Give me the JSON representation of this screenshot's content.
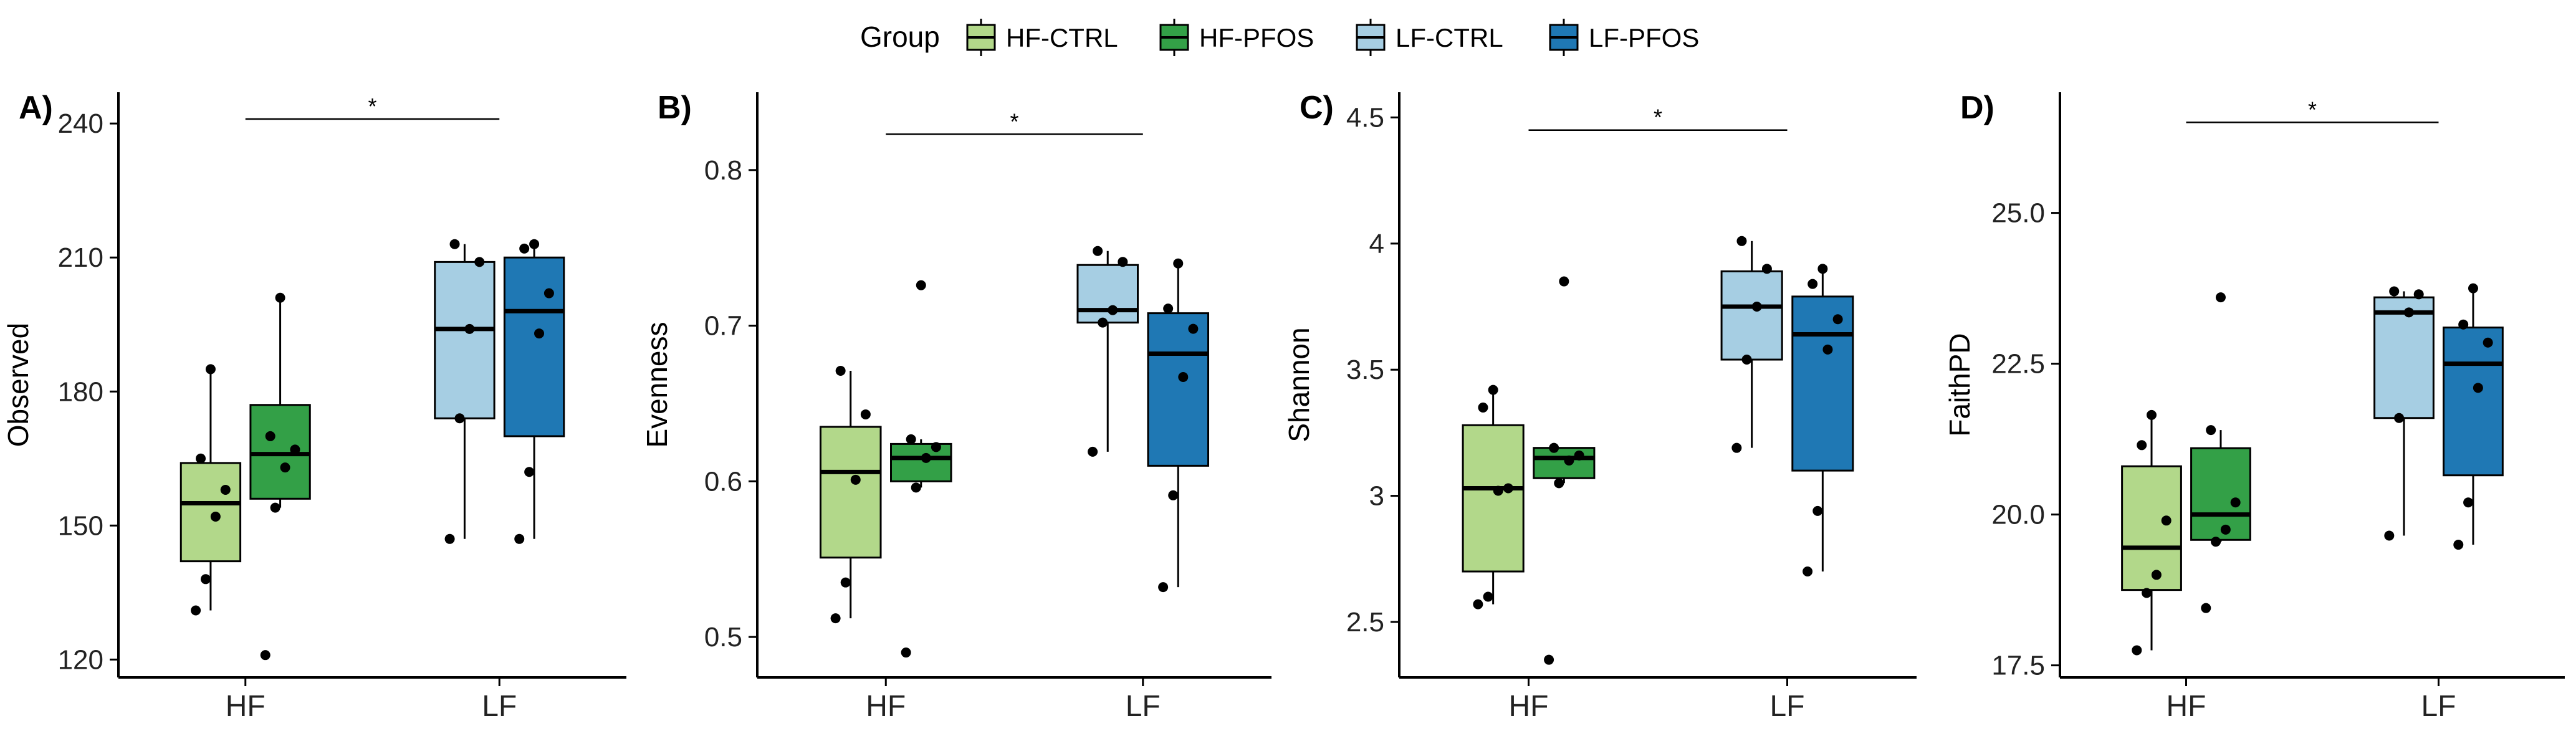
{
  "legend": {
    "title": "Group",
    "items": [
      {
        "label": "HF-CTRL",
        "color": "#b2d88a"
      },
      {
        "label": "HF-PFOS",
        "color": "#33a047"
      },
      {
        "label": "LF-CTRL",
        "color": "#a6cee3"
      },
      {
        "label": "LF-PFOS",
        "color": "#1f78b4"
      }
    ]
  },
  "chart_data": [
    {
      "type": "boxplot",
      "panel_label": "A)",
      "ylabel": "Observed",
      "categories": [
        "HF",
        "LF"
      ],
      "yticks": [
        120,
        150,
        180,
        210,
        240
      ],
      "ylim": [
        116,
        247
      ],
      "significance": {
        "from": "HF",
        "to": "LF",
        "y": 241,
        "label": "*"
      },
      "groups": [
        {
          "name": "HF-CTRL",
          "category": "HF",
          "whisker_low": 131,
          "q1": 142,
          "median": 155,
          "q3": 164,
          "whisker_high": 185,
          "points": [
            131,
            138,
            152,
            158,
            165,
            185
          ]
        },
        {
          "name": "HF-PFOS",
          "category": "HF",
          "whisker_low": 154,
          "q1": 156,
          "median": 166,
          "q3": 177,
          "whisker_high": 201,
          "points": [
            121,
            154,
            163,
            167,
            170,
            201
          ]
        },
        {
          "name": "LF-CTRL",
          "category": "LF",
          "whisker_low": 147,
          "q1": 174,
          "median": 194,
          "q3": 209,
          "whisker_high": 213,
          "points": [
            147,
            174,
            194,
            209,
            213
          ]
        },
        {
          "name": "LF-PFOS",
          "category": "LF",
          "whisker_low": 147,
          "q1": 170,
          "median": 198,
          "q3": 210,
          "whisker_high": 213,
          "points": [
            147,
            162,
            193,
            202,
            212,
            213
          ]
        }
      ]
    },
    {
      "type": "boxplot",
      "panel_label": "B)",
      "ylabel": "Evenness",
      "categories": [
        "HF",
        "LF"
      ],
      "yticks": [
        0.5,
        0.6,
        0.7,
        0.8
      ],
      "ylim": [
        0.474,
        0.85
      ],
      "significance": {
        "from": "HF",
        "to": "LF",
        "y": 0.823,
        "label": "*"
      },
      "groups": [
        {
          "name": "HF-CTRL",
          "category": "HF",
          "whisker_low": 0.512,
          "q1": 0.551,
          "median": 0.606,
          "q3": 0.635,
          "whisker_high": 0.671,
          "points": [
            0.512,
            0.535,
            0.601,
            0.643,
            0.671
          ]
        },
        {
          "name": "HF-PFOS",
          "category": "HF",
          "whisker_low": 0.596,
          "q1": 0.6,
          "median": 0.615,
          "q3": 0.624,
          "whisker_high": 0.627,
          "points": [
            0.49,
            0.596,
            0.615,
            0.622,
            0.627,
            0.726
          ]
        },
        {
          "name": "LF-CTRL",
          "category": "LF",
          "whisker_low": 0.619,
          "q1": 0.702,
          "median": 0.71,
          "q3": 0.739,
          "whisker_high": 0.748,
          "points": [
            0.619,
            0.702,
            0.71,
            0.741,
            0.748
          ]
        },
        {
          "name": "LF-PFOS",
          "category": "LF",
          "whisker_low": 0.532,
          "q1": 0.61,
          "median": 0.682,
          "q3": 0.708,
          "whisker_high": 0.74,
          "points": [
            0.532,
            0.591,
            0.667,
            0.698,
            0.711,
            0.74
          ]
        }
      ]
    },
    {
      "type": "boxplot",
      "panel_label": "C)",
      "ylabel": "Shannon",
      "categories": [
        "HF",
        "LF"
      ],
      "yticks": [
        2.5,
        3.0,
        3.5,
        4.0,
        4.5
      ],
      "ylim": [
        2.28,
        4.6
      ],
      "significance": {
        "from": "HF",
        "to": "LF",
        "y": 4.45,
        "label": "*"
      },
      "groups": [
        {
          "name": "HF-CTRL",
          "category": "HF",
          "whisker_low": 2.57,
          "q1": 2.7,
          "median": 3.03,
          "q3": 3.28,
          "whisker_high": 3.42,
          "points": [
            2.57,
            2.6,
            3.02,
            3.03,
            3.35,
            3.42
          ]
        },
        {
          "name": "HF-PFOS",
          "category": "HF",
          "whisker_low": 3.05,
          "q1": 3.07,
          "median": 3.15,
          "q3": 3.19,
          "whisker_high": 3.19,
          "points": [
            2.35,
            3.05,
            3.14,
            3.16,
            3.19,
            3.85
          ]
        },
        {
          "name": "LF-CTRL",
          "category": "LF",
          "whisker_low": 3.19,
          "q1": 3.54,
          "median": 3.75,
          "q3": 3.89,
          "whisker_high": 4.01,
          "points": [
            3.19,
            3.54,
            3.75,
            3.9,
            4.01
          ]
        },
        {
          "name": "LF-PFOS",
          "category": "LF",
          "whisker_low": 2.7,
          "q1": 3.1,
          "median": 3.64,
          "q3": 3.79,
          "whisker_high": 3.9,
          "points": [
            2.7,
            2.94,
            3.58,
            3.7,
            3.84,
            3.9
          ]
        }
      ]
    },
    {
      "type": "boxplot",
      "panel_label": "D)",
      "ylabel": "FaithPD",
      "categories": [
        "HF",
        "LF"
      ],
      "yticks": [
        17.5,
        20.0,
        22.5,
        25.0
      ],
      "yticklabels": [
        "17.5",
        "20.0",
        "22.5",
        "25.0"
      ],
      "ylim": [
        17.3,
        27.0
      ],
      "significance": {
        "from": "HF",
        "to": "LF",
        "y": 26.5,
        "label": "*"
      },
      "groups": [
        {
          "name": "HF-CTRL",
          "category": "HF",
          "whisker_low": 17.75,
          "q1": 18.75,
          "median": 19.45,
          "q3": 20.8,
          "whisker_high": 21.65,
          "points": [
            17.75,
            18.7,
            19.0,
            19.9,
            21.15,
            21.65
          ]
        },
        {
          "name": "HF-PFOS",
          "category": "HF",
          "whisker_low": 19.55,
          "q1": 19.58,
          "median": 20.0,
          "q3": 21.1,
          "whisker_high": 21.4,
          "points": [
            18.45,
            19.55,
            19.75,
            20.2,
            21.4,
            23.6
          ]
        },
        {
          "name": "LF-CTRL",
          "category": "LF",
          "whisker_low": 19.65,
          "q1": 21.6,
          "median": 23.35,
          "q3": 23.6,
          "whisker_high": 23.7,
          "points": [
            19.65,
            21.6,
            23.35,
            23.65,
            23.7
          ]
        },
        {
          "name": "LF-PFOS",
          "category": "LF",
          "whisker_low": 19.5,
          "q1": 20.65,
          "median": 22.5,
          "q3": 23.1,
          "whisker_high": 23.75,
          "points": [
            19.5,
            20.2,
            22.1,
            22.85,
            23.15,
            23.75
          ]
        }
      ]
    }
  ]
}
